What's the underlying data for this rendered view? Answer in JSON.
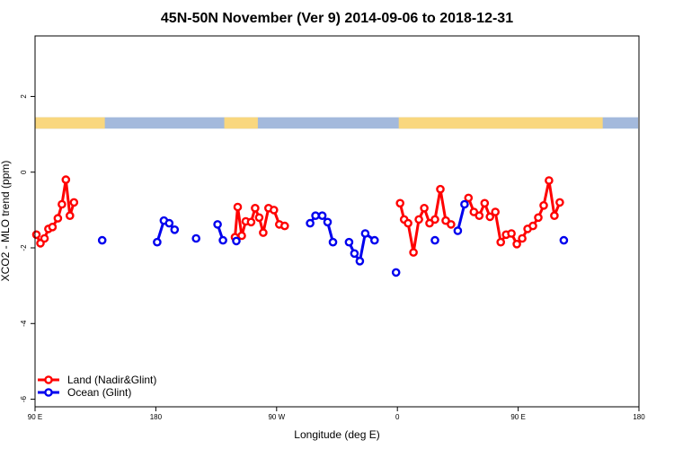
{
  "chart_data": {
    "type": "line",
    "title": "45N-50N November (Ver 9)   2014-09-06 to 2018-12-31",
    "xlabel": "Longitude (deg E)",
    "ylabel": "XCO2 - MLO trend (ppm)",
    "xlim": [
      90,
      540
    ],
    "ylim": [
      -6.2,
      3.6
    ],
    "x_ticks": [
      {
        "value": 90,
        "label": "90 E"
      },
      {
        "value": 180,
        "label": "180"
      },
      {
        "value": 270,
        "label": "90 W"
      },
      {
        "value": 360,
        "label": "0"
      },
      {
        "value": 450,
        "label": "90 E"
      },
      {
        "value": 540,
        "label": "180"
      }
    ],
    "y_ticks": [
      {
        "value": 2,
        "label": "2"
      },
      {
        "value": 0,
        "label": "0"
      },
      {
        "value": -2,
        "label": "-2"
      },
      {
        "value": -4,
        "label": "-4"
      },
      {
        "value": -6,
        "label": "-6"
      }
    ],
    "land_ocean_strip": {
      "y_range": [
        1.15,
        1.45
      ],
      "land_color": "#f9d77e",
      "ocean_color": "#a3b9dc",
      "land_spans": [
        [
          90,
          142
        ],
        [
          231,
          256
        ],
        [
          361,
          513
        ]
      ]
    },
    "series": [
      {
        "name": "Land (Nadir&Glint)",
        "color": "#ff0000",
        "segments": [
          [
            [
              91,
              -1.65
            ],
            [
              94,
              -1.88
            ],
            [
              97,
              -1.75
            ],
            [
              100,
              -1.5
            ],
            [
              103,
              -1.45
            ],
            [
              107,
              -1.22
            ],
            [
              110,
              -0.85
            ],
            [
              113,
              -0.2
            ],
            [
              116,
              -1.15
            ],
            [
              119,
              -0.8
            ]
          ],
          [
            [
              239,
              -1.72
            ],
            [
              241,
              -0.92
            ],
            [
              244,
              -1.68
            ],
            [
              247,
              -1.3
            ],
            [
              251,
              -1.32
            ],
            [
              254,
              -0.95
            ],
            [
              257,
              -1.2
            ],
            [
              260,
              -1.6
            ],
            [
              264,
              -0.95
            ],
            [
              268,
              -1.0
            ],
            [
              272,
              -1.38
            ],
            [
              276,
              -1.42
            ]
          ],
          [
            [
              362,
              -0.82
            ],
            [
              365,
              -1.25
            ],
            [
              368,
              -1.35
            ],
            [
              372,
              -2.12
            ],
            [
              376,
              -1.25
            ],
            [
              380,
              -0.95
            ],
            [
              384,
              -1.35
            ],
            [
              388,
              -1.25
            ],
            [
              392,
              -0.45
            ],
            [
              396,
              -1.28
            ],
            [
              400,
              -1.38
            ]
          ],
          [
            [
              413,
              -0.68
            ],
            [
              417,
              -1.05
            ],
            [
              421,
              -1.15
            ],
            [
              425,
              -0.82
            ],
            [
              429,
              -1.18
            ],
            [
              433,
              -1.05
            ],
            [
              437,
              -1.85
            ],
            [
              441,
              -1.65
            ],
            [
              445,
              -1.62
            ],
            [
              449,
              -1.9
            ],
            [
              453,
              -1.75
            ],
            [
              457,
              -1.5
            ],
            [
              461,
              -1.42
            ],
            [
              465,
              -1.2
            ],
            [
              469,
              -0.88
            ],
            [
              473,
              -0.22
            ],
            [
              477,
              -1.15
            ],
            [
              481,
              -0.8
            ]
          ]
        ],
        "singles": []
      },
      {
        "name": "Ocean (Glint)",
        "color": "#0000ee",
        "segments": [
          [
            [
              181,
              -1.85
            ],
            [
              186,
              -1.28
            ],
            [
              190,
              -1.35
            ],
            [
              194,
              -1.52
            ]
          ],
          [
            [
              226,
              -1.38
            ],
            [
              230,
              -1.8
            ]
          ],
          [
            [
              295,
              -1.35
            ],
            [
              299,
              -1.15
            ],
            [
              304,
              -1.15
            ],
            [
              308,
              -1.32
            ],
            [
              312,
              -1.85
            ]
          ],
          [
            [
              324,
              -1.85
            ],
            [
              328,
              -2.15
            ],
            [
              332,
              -2.35
            ],
            [
              336,
              -1.62
            ],
            [
              343,
              -1.8
            ]
          ],
          [
            [
              405,
              -1.55
            ],
            [
              410,
              -0.85
            ]
          ]
        ],
        "singles": [
          [
            140,
            -1.8
          ],
          [
            210,
            -1.75
          ],
          [
            240,
            -1.82
          ],
          [
            359,
            -2.65
          ],
          [
            388,
            -1.8
          ],
          [
            484,
            -1.8
          ]
        ]
      }
    ],
    "legend_position": "bottom-left"
  }
}
